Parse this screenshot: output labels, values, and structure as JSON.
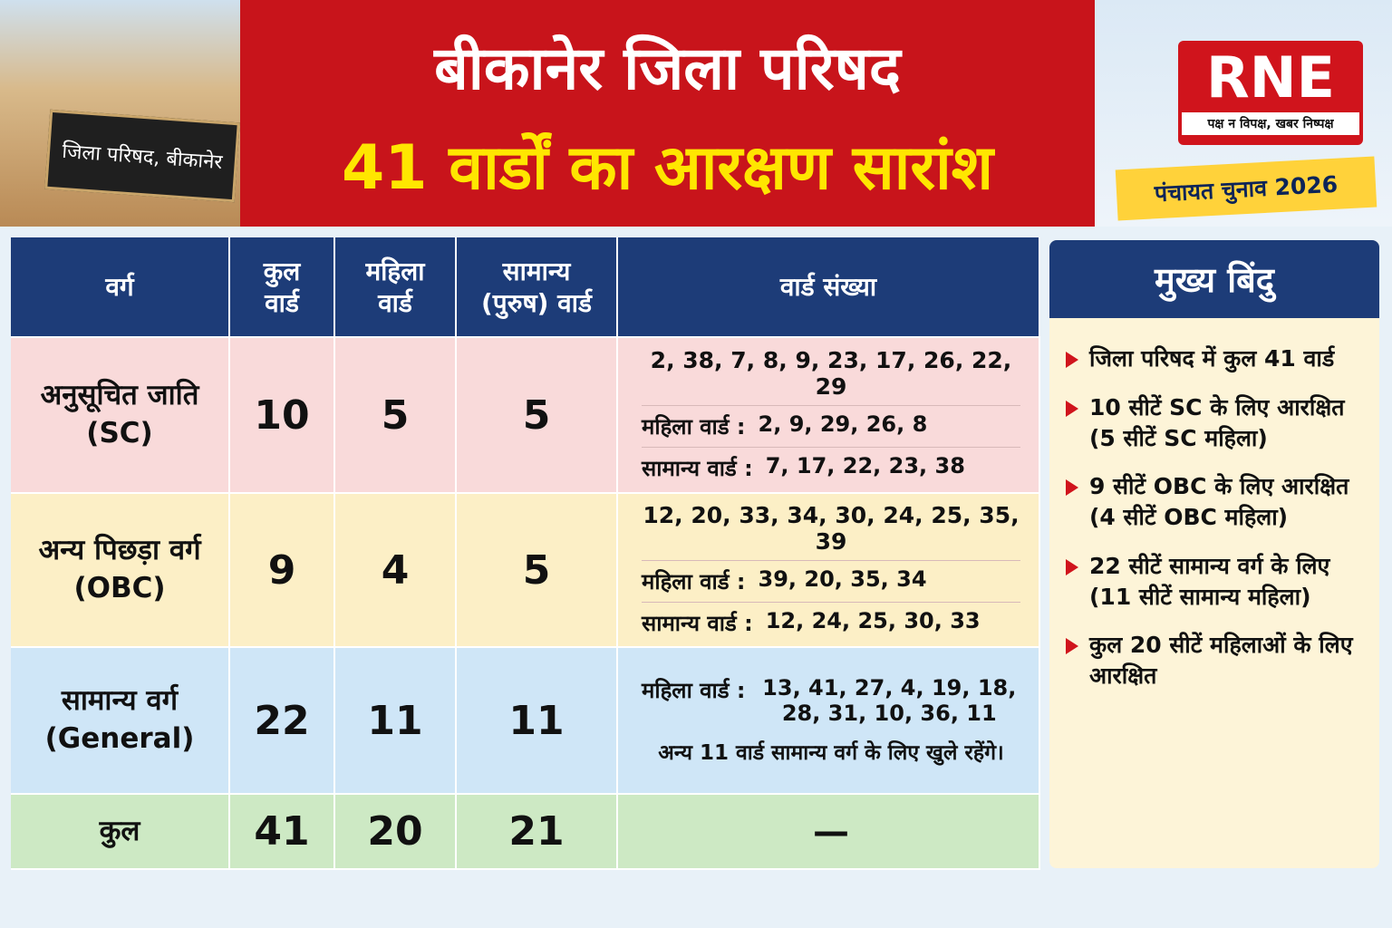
{
  "header": {
    "building_sign": "जिला परिषद, बीकानेर",
    "title_line1": "बीकानेर जिला परिषद",
    "title_line2": "41 वार्डों का आरक्षण सारांश",
    "logo": "RNE",
    "tagline": "पक्ष न विपक्ष, खबर निष्पक्ष",
    "badge": "पंचायत चुनाव 2026"
  },
  "table": {
    "headers": [
      "वर्ग",
      "कुल वार्ड",
      "महिला वार्ड",
      "सामान्य (पुरुष) वार्ड",
      "वार्ड संख्या"
    ],
    "rows": [
      {
        "category": "अनुसूचित जाति (SC)",
        "total": "10",
        "women": "5",
        "general": "5",
        "all_wards": "2, 38, 7, 8, 9, 23, 17, 26, 22, 29",
        "women_label": "महिला वार्ड :",
        "women_wards": "2, 9, 29, 26, 8",
        "general_label": "सामान्य वार्ड :",
        "general_wards": "7, 17, 22, 23, 38"
      },
      {
        "category": "अन्य पिछड़ा वर्ग (OBC)",
        "total": "9",
        "women": "4",
        "general": "5",
        "all_wards": "12, 20, 33, 34, 30, 24, 25, 35, 39",
        "women_label": "महिला वार्ड :",
        "women_wards": "39, 20, 35, 34",
        "general_label": "सामान्य वार्ड :",
        "general_wards": "12, 24, 25, 30, 33"
      },
      {
        "category": "सामान्य वर्ग (General)",
        "total": "22",
        "women": "11",
        "general": "11",
        "women_label": "महिला वार्ड :",
        "women_wards": "13, 41, 27, 4, 19, 18, 28, 31, 10, 36, 11",
        "note": "अन्य 11 वार्ड सामान्य वर्ग के लिए खुले रहेंगे।"
      },
      {
        "category": "कुल",
        "total": "41",
        "women": "20",
        "general": "21",
        "all_wards": "—"
      }
    ]
  },
  "side": {
    "title": "मुख्य बिंदु",
    "points": [
      "जिला परिषद में कुल 41 वार्ड",
      "10 सीटें SC के लिए आरक्षित (5 सीटें SC महिला)",
      "9 सीटें OBC के लिए आरक्षित (4 सीटें OBC महिला)",
      "22 सीटें सामान्य वर्ग के लिए (11 सीटें सामान्य महिला)",
      "कुल 20 सीटें महिलाओं के लिए आरक्षित"
    ]
  }
}
